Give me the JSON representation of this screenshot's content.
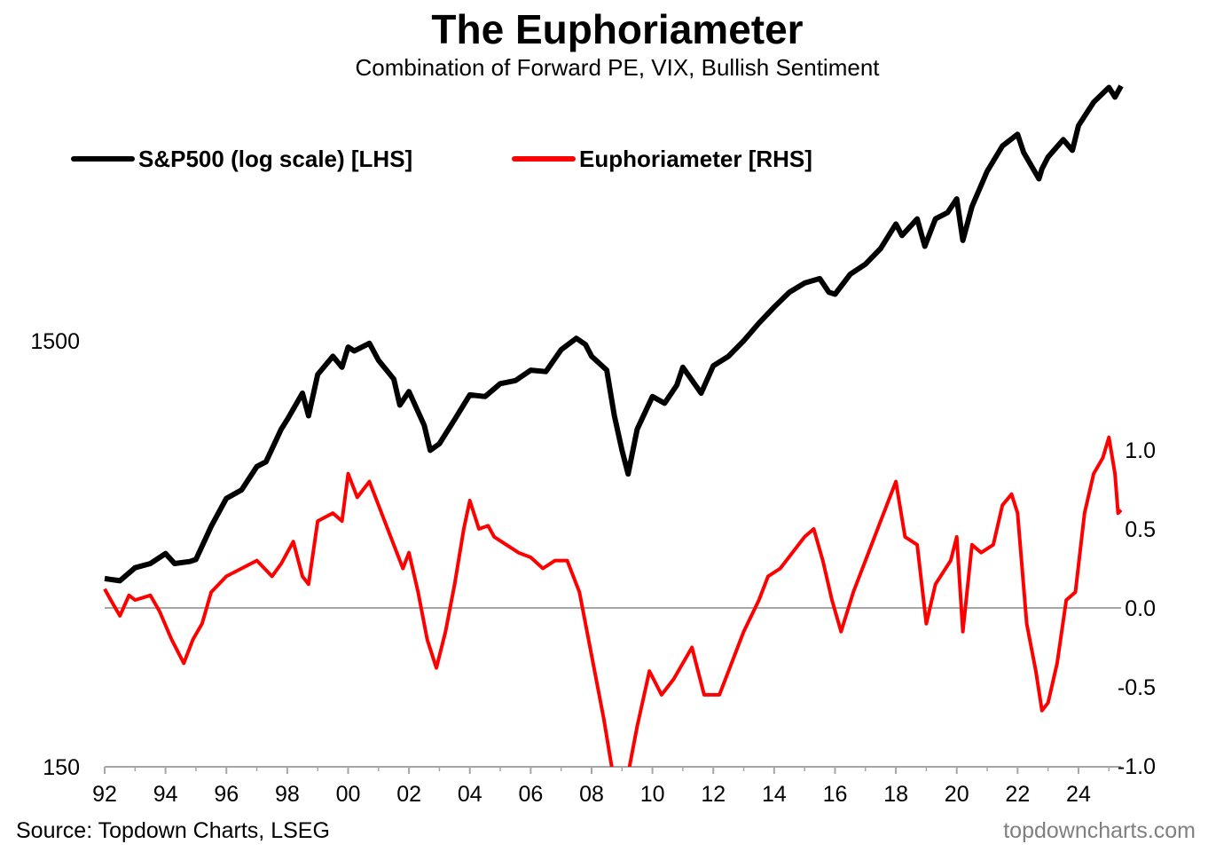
{
  "chart_data": {
    "type": "line",
    "title": "The Euphoriameter",
    "subtitle": "Combination of Forward PE, VIX, Bullish Sentiment",
    "source": "Source: Topdown Charts, LSEG",
    "watermark": "topdowncharts.com",
    "legend_position": "top-left",
    "grid": false,
    "x_range": [
      1992.0,
      2025.4
    ],
    "x_ticks": [
      "92",
      "94",
      "96",
      "98",
      "00",
      "02",
      "04",
      "06",
      "08",
      "10",
      "12",
      "14",
      "16",
      "18",
      "20",
      "22",
      "24"
    ],
    "left_axis": {
      "scale": "log",
      "range": [
        150,
        8000
      ],
      "tick_labels": [
        "150",
        "1500"
      ],
      "tick_values": [
        150,
        1500
      ]
    },
    "right_axis": {
      "scale": "linear",
      "range": [
        -1.0,
        1.35
      ],
      "tick_labels": [
        "1.0",
        "0.5",
        "0.0",
        "-0.5",
        "-1.0"
      ],
      "tick_values": [
        1.0,
        0.5,
        0.0,
        -0.5,
        -1.0
      ],
      "zero_line": true
    },
    "colors": {
      "sp500": "#000000",
      "euphoriameter": "#ff0000",
      "zero_line": "#a6a6a6",
      "axis": "#a6a6a6",
      "watermark": "#808080"
    },
    "series": [
      {
        "name": "S&P500 (log scale) [LHS]",
        "axis": "left",
        "points": [
          [
            1992.0,
            415
          ],
          [
            1992.5,
            410
          ],
          [
            1993.0,
            440
          ],
          [
            1993.5,
            450
          ],
          [
            1994.0,
            475
          ],
          [
            1994.3,
            450
          ],
          [
            1994.8,
            455
          ],
          [
            1995.0,
            460
          ],
          [
            1995.5,
            550
          ],
          [
            1996.0,
            640
          ],
          [
            1996.5,
            670
          ],
          [
            1997.0,
            760
          ],
          [
            1997.3,
            780
          ],
          [
            1997.8,
            930
          ],
          [
            1998.0,
            980
          ],
          [
            1998.5,
            1130
          ],
          [
            1998.7,
            1000
          ],
          [
            1999.0,
            1250
          ],
          [
            1999.5,
            1380
          ],
          [
            1999.8,
            1300
          ],
          [
            2000.0,
            1450
          ],
          [
            2000.2,
            1420
          ],
          [
            2000.7,
            1480
          ],
          [
            2001.0,
            1350
          ],
          [
            2001.5,
            1220
          ],
          [
            2001.7,
            1060
          ],
          [
            2002.0,
            1140
          ],
          [
            2002.5,
            950
          ],
          [
            2002.7,
            830
          ],
          [
            2003.0,
            860
          ],
          [
            2003.5,
            980
          ],
          [
            2004.0,
            1120
          ],
          [
            2004.5,
            1110
          ],
          [
            2005.0,
            1190
          ],
          [
            2005.5,
            1210
          ],
          [
            2006.0,
            1280
          ],
          [
            2006.5,
            1270
          ],
          [
            2007.0,
            1430
          ],
          [
            2007.5,
            1520
          ],
          [
            2007.8,
            1470
          ],
          [
            2008.0,
            1380
          ],
          [
            2008.5,
            1280
          ],
          [
            2008.75,
            1000
          ],
          [
            2009.0,
            830
          ],
          [
            2009.2,
            730
          ],
          [
            2009.5,
            930
          ],
          [
            2010.0,
            1110
          ],
          [
            2010.4,
            1070
          ],
          [
            2010.8,
            1180
          ],
          [
            2011.0,
            1300
          ],
          [
            2011.6,
            1130
          ],
          [
            2012.0,
            1310
          ],
          [
            2012.5,
            1380
          ],
          [
            2013.0,
            1500
          ],
          [
            2013.5,
            1650
          ],
          [
            2014.0,
            1800
          ],
          [
            2014.5,
            1950
          ],
          [
            2015.0,
            2050
          ],
          [
            2015.5,
            2100
          ],
          [
            2015.8,
            1950
          ],
          [
            2016.0,
            1930
          ],
          [
            2016.5,
            2150
          ],
          [
            2017.0,
            2270
          ],
          [
            2017.5,
            2470
          ],
          [
            2018.0,
            2820
          ],
          [
            2018.2,
            2650
          ],
          [
            2018.7,
            2900
          ],
          [
            2018.95,
            2500
          ],
          [
            2019.3,
            2900
          ],
          [
            2019.7,
            3000
          ],
          [
            2020.0,
            3230
          ],
          [
            2020.2,
            2580
          ],
          [
            2020.5,
            3100
          ],
          [
            2021.0,
            3750
          ],
          [
            2021.5,
            4300
          ],
          [
            2022.0,
            4580
          ],
          [
            2022.2,
            4150
          ],
          [
            2022.7,
            3600
          ],
          [
            2022.8,
            3800
          ],
          [
            2023.0,
            4050
          ],
          [
            2023.5,
            4450
          ],
          [
            2023.8,
            4200
          ],
          [
            2024.0,
            4800
          ],
          [
            2024.5,
            5450
          ],
          [
            2025.0,
            5900
          ],
          [
            2025.2,
            5600
          ],
          [
            2025.4,
            5950
          ]
        ]
      },
      {
        "name": "Euphoriameter [RHS]",
        "axis": "right",
        "points": [
          [
            1992.0,
            0.12
          ],
          [
            1992.2,
            0.05
          ],
          [
            1992.5,
            -0.05
          ],
          [
            1992.8,
            0.08
          ],
          [
            1993.0,
            0.05
          ],
          [
            1993.5,
            0.08
          ],
          [
            1993.8,
            -0.02
          ],
          [
            1994.2,
            -0.2
          ],
          [
            1994.6,
            -0.35
          ],
          [
            1994.9,
            -0.2
          ],
          [
            1995.2,
            -0.1
          ],
          [
            1995.5,
            0.1
          ],
          [
            1996.0,
            0.2
          ],
          [
            1996.5,
            0.25
          ],
          [
            1997.0,
            0.3
          ],
          [
            1997.5,
            0.2
          ],
          [
            1997.8,
            0.28
          ],
          [
            1998.2,
            0.42
          ],
          [
            1998.5,
            0.2
          ],
          [
            1998.7,
            0.15
          ],
          [
            1999.0,
            0.55
          ],
          [
            1999.5,
            0.6
          ],
          [
            1999.8,
            0.55
          ],
          [
            2000.0,
            0.85
          ],
          [
            2000.3,
            0.7
          ],
          [
            2000.7,
            0.8
          ],
          [
            2001.0,
            0.65
          ],
          [
            2001.4,
            0.45
          ],
          [
            2001.8,
            0.25
          ],
          [
            2002.0,
            0.35
          ],
          [
            2002.3,
            0.1
          ],
          [
            2002.6,
            -0.2
          ],
          [
            2002.9,
            -0.38
          ],
          [
            2003.2,
            -0.15
          ],
          [
            2003.5,
            0.15
          ],
          [
            2003.8,
            0.5
          ],
          [
            2004.0,
            0.68
          ],
          [
            2004.3,
            0.5
          ],
          [
            2004.6,
            0.52
          ],
          [
            2004.8,
            0.45
          ],
          [
            2005.2,
            0.4
          ],
          [
            2005.6,
            0.35
          ],
          [
            2006.0,
            0.32
          ],
          [
            2006.4,
            0.25
          ],
          [
            2006.8,
            0.3
          ],
          [
            2007.2,
            0.3
          ],
          [
            2007.6,
            0.1
          ],
          [
            2008.0,
            -0.3
          ],
          [
            2008.4,
            -0.7
          ],
          [
            2008.7,
            -1.05
          ],
          [
            2009.2,
            -1.05
          ],
          [
            2009.5,
            -0.75
          ],
          [
            2009.9,
            -0.4
          ],
          [
            2010.3,
            -0.55
          ],
          [
            2010.7,
            -0.45
          ],
          [
            2011.0,
            -0.35
          ],
          [
            2011.3,
            -0.25
          ],
          [
            2011.7,
            -0.55
          ],
          [
            2012.2,
            -0.55
          ],
          [
            2012.5,
            -0.4
          ],
          [
            2013.0,
            -0.15
          ],
          [
            2013.5,
            0.05
          ],
          [
            2013.8,
            0.2
          ],
          [
            2014.2,
            0.25
          ],
          [
            2014.6,
            0.35
          ],
          [
            2015.0,
            0.45
          ],
          [
            2015.3,
            0.5
          ],
          [
            2015.6,
            0.3
          ],
          [
            2015.9,
            0.05
          ],
          [
            2016.2,
            -0.15
          ],
          [
            2016.6,
            0.1
          ],
          [
            2017.0,
            0.3
          ],
          [
            2017.5,
            0.55
          ],
          [
            2018.0,
            0.8
          ],
          [
            2018.3,
            0.45
          ],
          [
            2018.7,
            0.4
          ],
          [
            2019.0,
            -0.1
          ],
          [
            2019.3,
            0.15
          ],
          [
            2019.8,
            0.3
          ],
          [
            2020.0,
            0.45
          ],
          [
            2020.2,
            -0.15
          ],
          [
            2020.5,
            0.4
          ],
          [
            2020.8,
            0.35
          ],
          [
            2021.2,
            0.4
          ],
          [
            2021.5,
            0.65
          ],
          [
            2021.8,
            0.72
          ],
          [
            2022.0,
            0.6
          ],
          [
            2022.3,
            -0.1
          ],
          [
            2022.6,
            -0.4
          ],
          [
            2022.8,
            -0.65
          ],
          [
            2023.0,
            -0.6
          ],
          [
            2023.3,
            -0.35
          ],
          [
            2023.6,
            0.05
          ],
          [
            2023.9,
            0.1
          ],
          [
            2024.2,
            0.6
          ],
          [
            2024.5,
            0.85
          ],
          [
            2024.8,
            0.95
          ],
          [
            2025.0,
            1.08
          ],
          [
            2025.2,
            0.85
          ],
          [
            2025.3,
            0.6
          ],
          [
            2025.4,
            0.62
          ]
        ]
      }
    ]
  }
}
